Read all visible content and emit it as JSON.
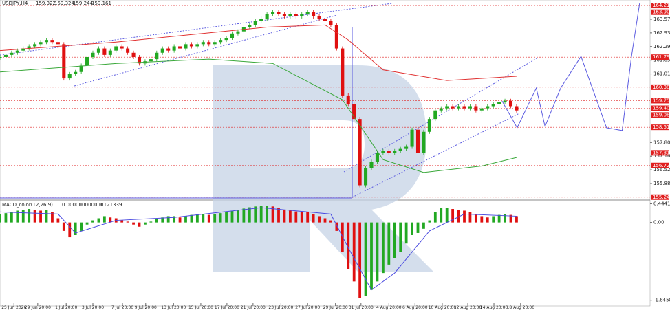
{
  "chart_data": [
    {
      "type": "candlestick",
      "title": "USDJPY,H4",
      "quote": [
        159.322,
        159.324,
        159.244,
        159.161
      ],
      "xlim": [
        0,
        112
      ],
      "ylim": [
        155.14,
        164.47
      ],
      "yticks": [
        {
          "value": 163.57,
          "label": "163.570"
        },
        {
          "value": 162.93,
          "label": "162.930"
        },
        {
          "value": 162.29,
          "label": "162.290"
        },
        {
          "value": 161.65,
          "label": "161.650"
        },
        {
          "value": 161.01,
          "label": "161.010"
        },
        {
          "value": 157.8,
          "label": "157.800"
        },
        {
          "value": 157.16,
          "label": "157.160"
        },
        {
          "value": 156.52,
          "label": "156.520"
        },
        {
          "value": 155.88,
          "label": "155.880"
        }
      ],
      "xticks": [
        {
          "value": 2.4,
          "label": "25 Jun 2026"
        },
        {
          "value": 6.5,
          "label": "29 Jun 20:00"
        },
        {
          "value": 11.4,
          "label": "1 Jul 20:00"
        },
        {
          "value": 16,
          "label": "3 Jul 20:00"
        },
        {
          "value": 21.1,
          "label": "7 Jul 20:00"
        },
        {
          "value": 25.1,
          "label": "9 Jul 20:00"
        },
        {
          "value": 29.9,
          "label": "13 Jul 20:00"
        },
        {
          "value": 34.6,
          "label": "15 Jul 20:00"
        },
        {
          "value": 39.1,
          "label": "17 Jul 20:00"
        },
        {
          "value": 43.6,
          "label": "21 Jul 20:00"
        },
        {
          "value": 48.4,
          "label": "23 Jul 20:00"
        },
        {
          "value": 53,
          "label": "27 Jul 20:00"
        },
        {
          "value": 57.8,
          "label": "29 Jul 20:00"
        },
        {
          "value": 62.2,
          "label": "31 Jul 20:00"
        },
        {
          "value": 67,
          "label": "4 Aug 20:00"
        },
        {
          "value": 71.5,
          "label": "6 Aug 20:00"
        },
        {
          "value": 76.2,
          "label": "10 Aug 20:00"
        },
        {
          "value": 80.6,
          "label": "12 Aug 20:00"
        },
        {
          "value": 85.1,
          "label": "14 Aug 20:00"
        },
        {
          "value": 89.7,
          "label": "18 Aug 20:00"
        }
      ],
      "candles": {
        "up_color": "#22a822",
        "down_color": "#e01010",
        "values": [
          161.8,
          161.9,
          162.0,
          162.1,
          162.2,
          162.3,
          162.4,
          162.5,
          162.6,
          162.5,
          162.4,
          160.8,
          161.0,
          161.1,
          161.4,
          161.8,
          162.0,
          162.2,
          161.9,
          162.1,
          162.3,
          162.2,
          162.0,
          161.8,
          161.5,
          161.6,
          161.7,
          162.0,
          162.2,
          162.1,
          162.3,
          162.2,
          162.4,
          162.3,
          162.4,
          162.5,
          162.4,
          162.5,
          162.6,
          162.7,
          162.9,
          163.0,
          163.2,
          163.3,
          163.5,
          163.6,
          163.8,
          163.9,
          163.8,
          163.7,
          163.8,
          163.7,
          163.8,
          163.9,
          163.7,
          163.6,
          163.5,
          163.3,
          162.2,
          160.0,
          159.6,
          158.9,
          155.8,
          156.6,
          156.9,
          157.3,
          157.4,
          157.3,
          157.4,
          157.5,
          157.6,
          158.4,
          157.3,
          158.3,
          158.9,
          159.3,
          159.4,
          159.5,
          159.4,
          159.5,
          159.4,
          159.5,
          159.3,
          159.4,
          159.5,
          159.6,
          159.7,
          159.75,
          159.5,
          159.3
        ]
      },
      "series": [
        {
          "color": "#e03030",
          "x": [
            0,
            20,
            46,
            56,
            60,
            66,
            77,
            89
          ],
          "values": [
            162.1,
            162.5,
            163.2,
            163.3,
            162.6,
            161.2,
            160.7,
            160.9
          ]
        },
        {
          "color": "#3aa83a",
          "x": [
            0,
            20,
            36,
            47,
            59,
            66,
            73,
            83,
            89
          ],
          "values": [
            161.1,
            161.5,
            161.7,
            161.5,
            159.8,
            157.0,
            156.4,
            156.7,
            157.1
          ]
        },
        {
          "color": "#5a5ae0",
          "x": [
            86.5,
            89.1,
            92.4,
            93.9,
            96.6,
            100.1,
            104.5,
            107.2,
            108.8,
            110.2
          ],
          "values": [
            159.74,
            158.49,
            160.35,
            158.55,
            160.35,
            161.83,
            158.49,
            158.36,
            161.83,
            164.31
          ]
        }
      ],
      "levels": {
        "color": "#e02020",
        "values": [
          164.21,
          163.9,
          161.793,
          160.388,
          159.758,
          159.403,
          159.085,
          158.513,
          157.317,
          156.724,
          155.244
        ],
        "value_labels": [
          "164.210",
          "163.900",
          "161.793",
          "160.388",
          "159.758",
          "159.403",
          "159.085",
          "158.513",
          "157.317",
          "156.724",
          "155.244"
        ]
      }
    },
    {
      "type": "bar",
      "title": "MACD_color(12,26,9)",
      "quote": [
        {
          "value": 0,
          "label": "0.000000"
        },
        {
          "value": 0,
          "label": "0.000000"
        },
        0.121339
      ],
      "xlim": [
        0,
        112
      ],
      "ylim": [
        -1.9,
        0.5
      ],
      "yticks": [
        0.444138,
        {
          "value": 0,
          "label": "0.00"
        },
        -1.845827
      ],
      "up_color": "#22a822",
      "down_color": "#e01010",
      "values": [
        0.2,
        0.22,
        0.25,
        0.28,
        0.3,
        0.32,
        0.3,
        0.28,
        0.3,
        0.25,
        0.1,
        -0.2,
        -0.35,
        -0.3,
        -0.2,
        -0.05,
        0.05,
        0.1,
        0.15,
        0.12,
        0.1,
        0.05,
        0.02,
        -0.05,
        -0.1,
        -0.05,
        0.02,
        0.08,
        0.12,
        0.15,
        0.15,
        0.12,
        0.15,
        0.18,
        0.2,
        0.2,
        0.18,
        0.2,
        0.22,
        0.25,
        0.28,
        0.3,
        0.33,
        0.36,
        0.38,
        0.4,
        0.4,
        0.38,
        0.35,
        0.3,
        0.28,
        0.26,
        0.25,
        0.24,
        0.2,
        0.15,
        0.1,
        0.05,
        -0.2,
        -0.7,
        -1.1,
        -1.4,
        -1.8,
        -1.75,
        -1.6,
        -1.4,
        -1.2,
        -1.0,
        -0.85,
        -0.7,
        -0.5,
        -0.3,
        -0.25,
        -0.15,
        0.05,
        0.25,
        0.35,
        0.35,
        0.32,
        0.3,
        0.28,
        0.25,
        0.2,
        0.15,
        0.12,
        0.15,
        0.18,
        0.2,
        0.18,
        0.15
      ],
      "signal": {
        "color": "#4a4ae0",
        "x": [
          0,
          10,
          13,
          20,
          30,
          45,
          57,
          60,
          64,
          68,
          74,
          80,
          89
        ],
        "values": [
          0.25,
          0.2,
          -0.25,
          0.05,
          0.12,
          0.35,
          0.2,
          -0.6,
          -1.6,
          -1.2,
          -0.2,
          0.2,
          0.15
        ]
      }
    }
  ]
}
